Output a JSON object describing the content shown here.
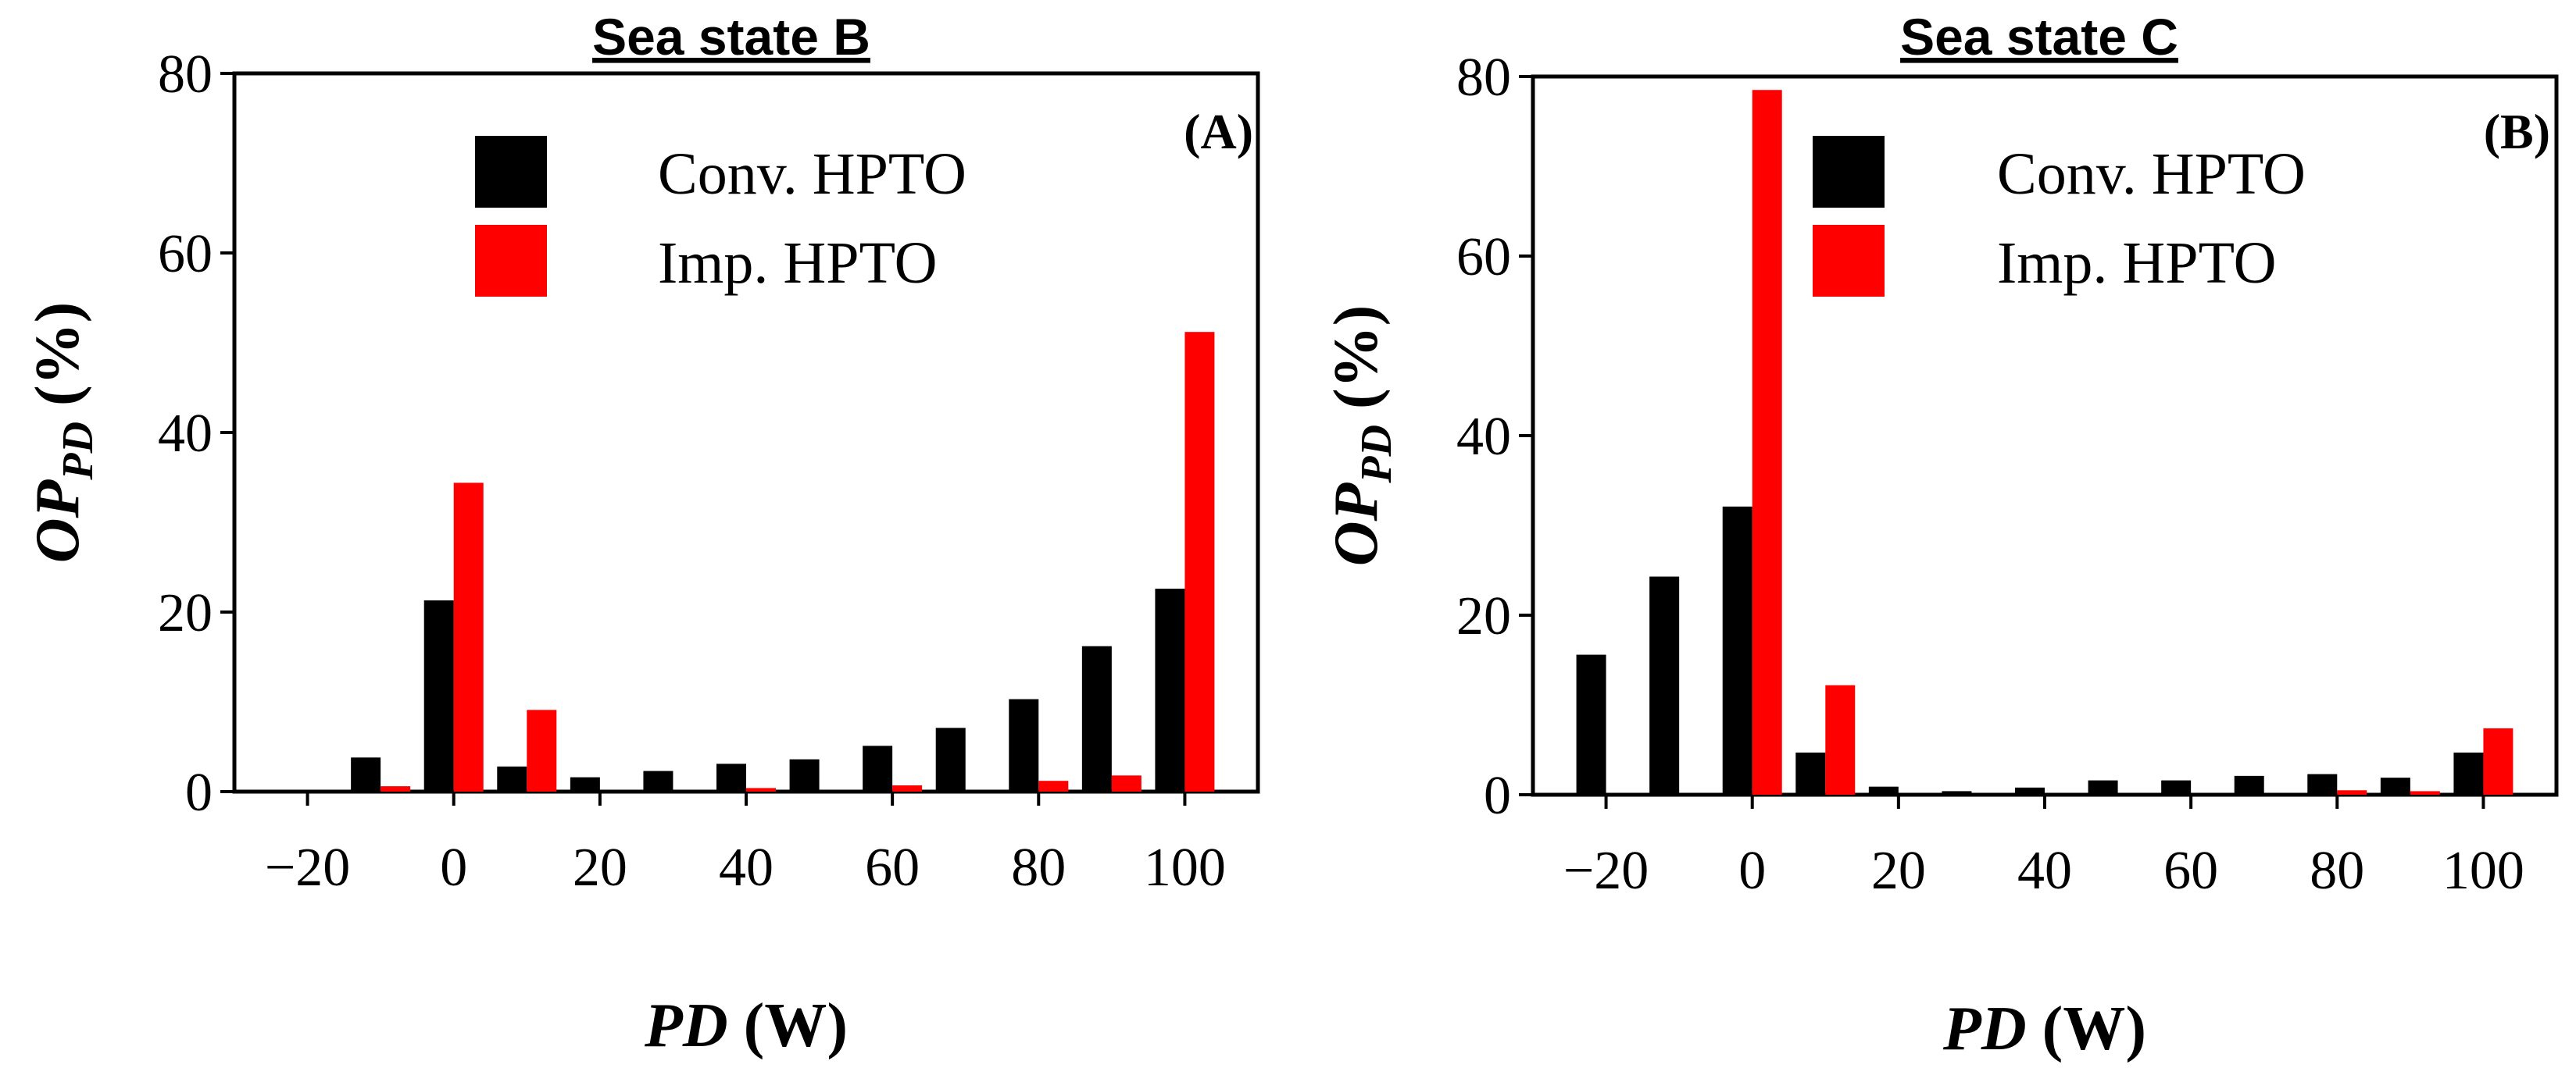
{
  "chart_data": [
    {
      "type": "bar",
      "title": "Sea state B",
      "panel_label": "(A)",
      "xlabel": {
        "var": "PD",
        "unit": "(W)"
      },
      "ylabel": {
        "var": "OP",
        "sub": "PD",
        "unit": "(%)"
      },
      "xticks": [
        "−20",
        "0",
        "20",
        "40",
        "60",
        "80",
        "100"
      ],
      "yticks": [
        "0",
        "20",
        "40",
        "60",
        "80"
      ],
      "xlim": [
        -30,
        110
      ],
      "ylim": [
        0,
        80
      ],
      "bins": [
        -20,
        -10,
        0,
        10,
        20,
        30,
        40,
        50,
        60,
        70,
        80,
        90,
        100
      ],
      "series": [
        {
          "name": "Conv. HPTO",
          "color": "#000000",
          "values": [
            0,
            3.8,
            21.3,
            2.8,
            1.6,
            2.3,
            3.1,
            3.6,
            5.1,
            7.1,
            10.3,
            16.2,
            22.6
          ]
        },
        {
          "name": "Imp. HPTO",
          "color": "#ff0000",
          "values": [
            0,
            0.6,
            34.4,
            9.1,
            0,
            0,
            0.4,
            0,
            0.7,
            0,
            1.2,
            1.8,
            51.2
          ]
        }
      ]
    },
    {
      "type": "bar",
      "title": "Sea state C",
      "panel_label": "(B)",
      "xlabel": {
        "var": "PD",
        "unit": "(W)"
      },
      "ylabel": {
        "var": "OP",
        "sub": "PD",
        "unit": "(%)"
      },
      "xticks": [
        "−20",
        "0",
        "20",
        "40",
        "60",
        "80",
        "100"
      ],
      "yticks": [
        "0",
        "20",
        "40",
        "60",
        "80"
      ],
      "xlim": [
        -30,
        110
      ],
      "ylim": [
        0,
        80
      ],
      "bins": [
        -20,
        -10,
        0,
        10,
        20,
        30,
        40,
        50,
        60,
        70,
        80,
        90,
        100
      ],
      "series": [
        {
          "name": "Conv. HPTO",
          "color": "#000000",
          "values": [
            15.6,
            24.3,
            32.1,
            4.7,
            0.9,
            0.4,
            0.8,
            1.6,
            1.6,
            2.1,
            2.3,
            1.9,
            4.7
          ]
        },
        {
          "name": "Imp. HPTO",
          "color": "#ff0000",
          "values": [
            0,
            0,
            78.5,
            12.2,
            0,
            0,
            0,
            0,
            0,
            0,
            0.5,
            0.4,
            7.4
          ]
        }
      ]
    }
  ]
}
